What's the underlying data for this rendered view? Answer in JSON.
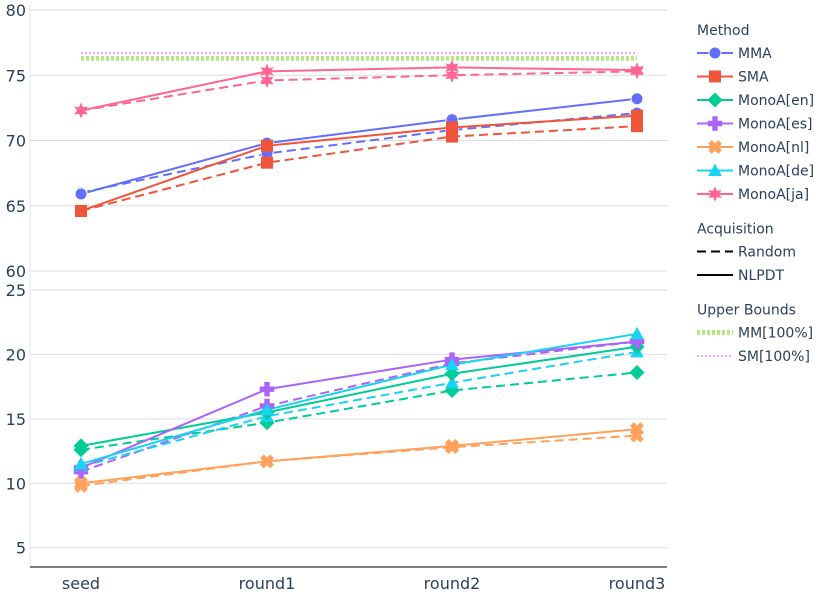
{
  "chart_data": {
    "type": "line",
    "categories": [
      "seed",
      "round1",
      "round2",
      "round3"
    ],
    "panels": [
      {
        "name": "top",
        "ylim": [
          60,
          80
        ],
        "yticks": [
          60,
          65,
          70,
          75,
          80
        ]
      },
      {
        "name": "bottom",
        "ylim": [
          3.5,
          25
        ],
        "yticks": [
          5,
          10,
          15,
          20,
          25
        ]
      }
    ],
    "legend": {
      "placement": "right",
      "groups": [
        {
          "title": "Method",
          "items": [
            {
              "label": "MMA",
              "color": "#636efa",
              "marker": "circle",
              "dash": "solid"
            },
            {
              "label": "SMA",
              "color": "#ef553b",
              "marker": "square",
              "dash": "solid"
            },
            {
              "label": "MonoA[en]",
              "color": "#00cc96",
              "marker": "diamond",
              "dash": "solid"
            },
            {
              "label": "MonoA[es]",
              "color": "#ab63fa",
              "marker": "cross",
              "dash": "solid"
            },
            {
              "label": "MonoA[nl]",
              "color": "#ffa15a",
              "marker": "x",
              "dash": "solid"
            },
            {
              "label": "MonoA[de]",
              "color": "#19d3f3",
              "marker": "triangle",
              "dash": "solid"
            },
            {
              "label": "MonoA[ja]",
              "color": "#ff6692",
              "marker": "star",
              "dash": "solid"
            }
          ]
        },
        {
          "title": "Acquisition",
          "items": [
            {
              "label": "Random",
              "color": "#000000",
              "marker": "none",
              "dash": "dash"
            },
            {
              "label": "NLPDT",
              "color": "#000000",
              "marker": "none",
              "dash": "solid"
            }
          ]
        },
        {
          "title": "Upper Bounds",
          "items": [
            {
              "label": "MM[100%]",
              "color": "#b6e880",
              "marker": "none",
              "dash": "dotted-thick"
            },
            {
              "label": "SM[100%]",
              "color": "#ff97ff",
              "marker": "none",
              "dash": "dotted"
            }
          ]
        }
      ]
    },
    "series": [
      {
        "method": "MMA",
        "acquisition": "NLPDT",
        "panel": "top",
        "values": [
          65.9,
          69.8,
          71.6,
          73.2
        ]
      },
      {
        "method": "MMA",
        "acquisition": "Random",
        "panel": "top",
        "values": [
          66.0,
          69.0,
          70.8,
          72.1
        ]
      },
      {
        "method": "SMA",
        "acquisition": "NLPDT",
        "panel": "top",
        "values": [
          64.6,
          69.6,
          71.0,
          71.9
        ]
      },
      {
        "method": "SMA",
        "acquisition": "Random",
        "panel": "top",
        "values": [
          64.6,
          68.3,
          70.3,
          71.1
        ]
      },
      {
        "method": "MonoA[ja]",
        "acquisition": "NLPDT",
        "panel": "top",
        "values": [
          72.3,
          75.3,
          75.6,
          75.4
        ]
      },
      {
        "method": "MonoA[ja]",
        "acquisition": "Random",
        "panel": "top",
        "values": [
          72.3,
          74.6,
          75.0,
          75.3
        ]
      },
      {
        "method": "MonoA[en]",
        "acquisition": "NLPDT",
        "panel": "bottom",
        "values": [
          12.9,
          15.5,
          18.5,
          20.6
        ]
      },
      {
        "method": "MonoA[en]",
        "acquisition": "Random",
        "panel": "bottom",
        "values": [
          12.6,
          14.7,
          17.2,
          18.6
        ]
      },
      {
        "method": "MonoA[es]",
        "acquisition": "NLPDT",
        "panel": "bottom",
        "values": [
          11.2,
          17.3,
          19.6,
          21.0
        ]
      },
      {
        "method": "MonoA[es]",
        "acquisition": "Random",
        "panel": "bottom",
        "values": [
          10.9,
          16.0,
          19.3,
          21.0
        ]
      },
      {
        "method": "MonoA[nl]",
        "acquisition": "NLPDT",
        "panel": "bottom",
        "values": [
          10.0,
          11.7,
          12.9,
          14.2
        ]
      },
      {
        "method": "MonoA[nl]",
        "acquisition": "Random",
        "panel": "bottom",
        "values": [
          9.8,
          11.7,
          12.8,
          13.7
        ]
      },
      {
        "method": "MonoA[de]",
        "acquisition": "NLPDT",
        "panel": "bottom",
        "values": [
          11.5,
          15.7,
          19.2,
          21.6
        ]
      },
      {
        "method": "MonoA[de]",
        "acquisition": "Random",
        "panel": "bottom",
        "values": [
          11.3,
          15.2,
          17.8,
          20.2
        ]
      }
    ],
    "upper_bounds": [
      {
        "name": "MM[100%]",
        "panel": "top",
        "value": 76.3
      },
      {
        "name": "SM[100%]",
        "panel": "top",
        "value": 76.7
      }
    ],
    "grid": true,
    "xlabel": "",
    "ylabel": ""
  }
}
